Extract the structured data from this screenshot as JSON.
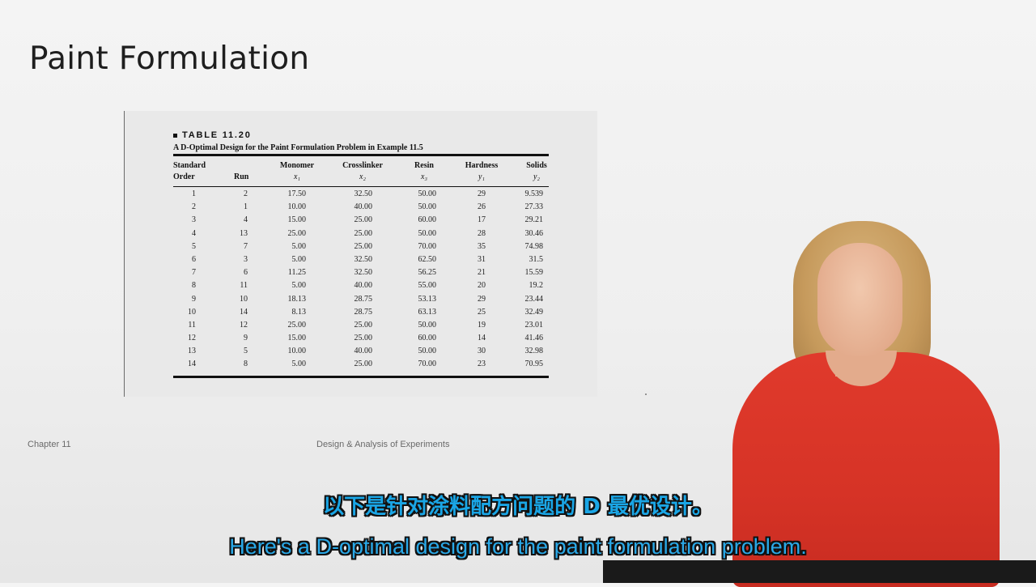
{
  "slide": {
    "title": "Paint Formulation",
    "footer_left": "Chapter 11",
    "footer_center": "Design & Analysis of Experiments"
  },
  "table": {
    "label": "TABLE 11.20",
    "caption": "A D-Optimal Design for the Paint Formulation Problem in Example 11.5",
    "headers": [
      {
        "line1": "Standard",
        "line2": "Order",
        "sub": ""
      },
      {
        "line1": "",
        "line2": "Run",
        "sub": ""
      },
      {
        "line1": "Monomer",
        "line2": "",
        "sub": "x₁"
      },
      {
        "line1": "Crosslinker",
        "line2": "",
        "sub": "x₂"
      },
      {
        "line1": "Resin",
        "line2": "",
        "sub": "x₃"
      },
      {
        "line1": "Hardness",
        "line2": "",
        "sub": "y₁"
      },
      {
        "line1": "Solids",
        "line2": "",
        "sub": "y₂"
      }
    ],
    "rows": [
      [
        "1",
        "2",
        "17.50",
        "32.50",
        "50.00",
        "29",
        "9.539"
      ],
      [
        "2",
        "1",
        "10.00",
        "40.00",
        "50.00",
        "26",
        "27.33"
      ],
      [
        "3",
        "4",
        "15.00",
        "25.00",
        "60.00",
        "17",
        "29.21"
      ],
      [
        "4",
        "13",
        "25.00",
        "25.00",
        "50.00",
        "28",
        "30.46"
      ],
      [
        "5",
        "7",
        "5.00",
        "25.00",
        "70.00",
        "35",
        "74.98"
      ],
      [
        "6",
        "3",
        "5.00",
        "32.50",
        "62.50",
        "31",
        "31.5"
      ],
      [
        "7",
        "6",
        "11.25",
        "32.50",
        "56.25",
        "21",
        "15.59"
      ],
      [
        "8",
        "11",
        "5.00",
        "40.00",
        "55.00",
        "20",
        "19.2"
      ],
      [
        "9",
        "10",
        "18.13",
        "28.75",
        "53.13",
        "29",
        "23.44"
      ],
      [
        "10",
        "14",
        "8.13",
        "28.75",
        "63.13",
        "25",
        "32.49"
      ],
      [
        "11",
        "12",
        "25.00",
        "25.00",
        "50.00",
        "19",
        "23.01"
      ],
      [
        "12",
        "9",
        "15.00",
        "25.00",
        "60.00",
        "14",
        "41.46"
      ],
      [
        "13",
        "5",
        "10.00",
        "40.00",
        "50.00",
        "30",
        "32.98"
      ],
      [
        "14",
        "8",
        "5.00",
        "25.00",
        "70.00",
        "23",
        "70.95"
      ]
    ]
  },
  "subtitles": {
    "chinese": "以下是针对涂料配方问题的 D 最优设计。",
    "english": "Here's a D-optimal design for the paint formulation problem."
  },
  "colors": {
    "subtitle_fill": "#1aa6e6",
    "subtitle_outline": "#111111",
    "dress": "#d63326"
  }
}
